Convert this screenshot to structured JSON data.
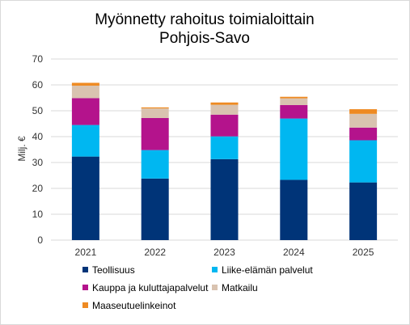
{
  "chart_data": {
    "type": "bar",
    "stacked": true,
    "title": [
      "Myönnetty rahoitus toimialoittain",
      "Pohjois-Savo"
    ],
    "ylabel": "Milj. €",
    "xlabel": "",
    "ylim": [
      0,
      70
    ],
    "yticks": [
      0,
      10,
      20,
      30,
      40,
      50,
      60,
      70
    ],
    "grid": true,
    "legend_position": "bottom",
    "categories": [
      "2021",
      "2022",
      "2023",
      "2024",
      "2025"
    ],
    "series": [
      {
        "name": "Teollisuus",
        "color": "#003478",
        "values": [
          32.3,
          23.8,
          31.3,
          23.3,
          22.3
        ]
      },
      {
        "name": "Liike-elämän palvelut",
        "color": "#00b7f1",
        "values": [
          12.2,
          11.0,
          8.8,
          23.7,
          16.3
        ]
      },
      {
        "name": "Kauppa ja kuluttajapalvelut",
        "color": "#b4138c",
        "values": [
          10.4,
          12.4,
          8.4,
          5.2,
          4.9
        ]
      },
      {
        "name": "Matkailu",
        "color": "#d9c3b0",
        "values": [
          4.8,
          3.7,
          3.8,
          2.6,
          5.3
        ]
      },
      {
        "name": "Maaseutuelinkeinot",
        "color": "#ee8a22",
        "values": [
          1.1,
          0.4,
          0.9,
          0.6,
          1.8
        ]
      }
    ]
  }
}
